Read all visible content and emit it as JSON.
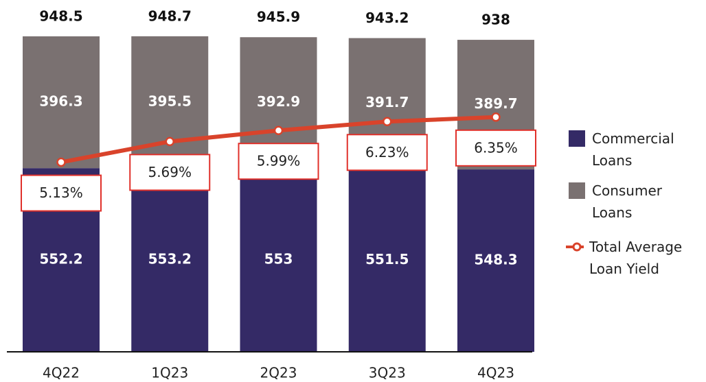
{
  "chart_data": {
    "type": "stacked_bar_line",
    "categories": [
      "4Q22",
      "1Q23",
      "2Q23",
      "3Q23",
      "4Q23"
    ],
    "series": [
      {
        "name": "Commercial Loans",
        "color": "#342a66",
        "values": [
          552.2,
          553.2,
          553.0,
          551.5,
          548.3
        ]
      },
      {
        "name": "Consumer Loans",
        "color": "#7a7171",
        "values": [
          396.3,
          395.5,
          392.9,
          391.7,
          389.7
        ]
      },
      {
        "name": "Total Average Loan Yield",
        "color": "#d9432b",
        "axis": "y2",
        "values": [
          5.13,
          5.69,
          5.99,
          6.23,
          6.35
        ],
        "value_labels": [
          "5.13%",
          "5.69%",
          "5.99%",
          "6.23%",
          "6.35%"
        ]
      }
    ],
    "totals": [
      948.5,
      948.7,
      945.9,
      943.2,
      938.0
    ],
    "ylim": [
      0,
      1000
    ],
    "y2lim": [
      0,
      9
    ]
  }
}
